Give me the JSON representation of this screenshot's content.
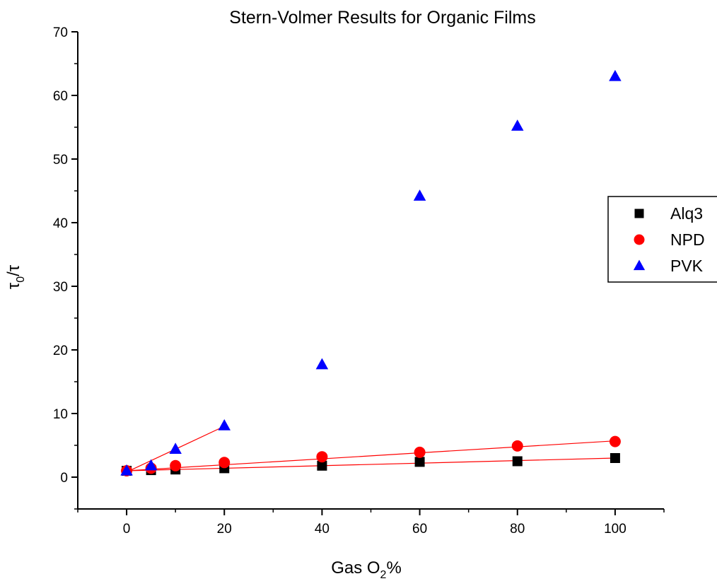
{
  "chart_data": {
    "type": "scatter",
    "title": "Stern-Volmer Results for Organic Films",
    "xlabel": {
      "base": "Gas O",
      "sub": "2",
      "suffix": "%"
    },
    "ylabel": {
      "base": "τ",
      "sub": "0",
      "suffix": "/τ"
    },
    "xlim": [
      -10,
      110
    ],
    "ylim": [
      -5,
      70
    ],
    "xticks": [
      0,
      20,
      40,
      60,
      80,
      100
    ],
    "yticks": [
      0,
      10,
      20,
      30,
      40,
      50,
      60,
      70
    ],
    "grid": false,
    "legend_position": "right",
    "series": [
      {
        "name": "Alq3",
        "marker": "square",
        "color": "#000000",
        "x": [
          0,
          5,
          10,
          20,
          40,
          60,
          80,
          100
        ],
        "y": [
          1.0,
          1.1,
          1.2,
          1.4,
          1.8,
          2.4,
          2.5,
          3.0
        ],
        "fit": {
          "x": [
            0,
            100
          ],
          "y": [
            1.0,
            3.0
          ],
          "color": "#ff0000"
        }
      },
      {
        "name": "NPD",
        "marker": "circle",
        "color": "#ff0000",
        "x": [
          0,
          5,
          10,
          20,
          40,
          60,
          80,
          100
        ],
        "y": [
          1.0,
          1.4,
          1.8,
          2.3,
          3.2,
          3.9,
          4.9,
          5.6
        ],
        "fit": {
          "x": [
            0,
            100
          ],
          "y": [
            1.0,
            5.7
          ],
          "color": "#ff0000"
        }
      },
      {
        "name": "PVK",
        "marker": "triangle",
        "color": "#0000ff",
        "x": [
          0,
          5,
          10,
          20,
          40,
          60,
          80,
          100
        ],
        "y": [
          1.0,
          1.8,
          4.4,
          8.1,
          17.7,
          44.2,
          55.2,
          63.0
        ],
        "fit": {
          "x": [
            0,
            20
          ],
          "y": [
            0.8,
            8.0
          ],
          "color": "#ff0000"
        }
      }
    ]
  }
}
